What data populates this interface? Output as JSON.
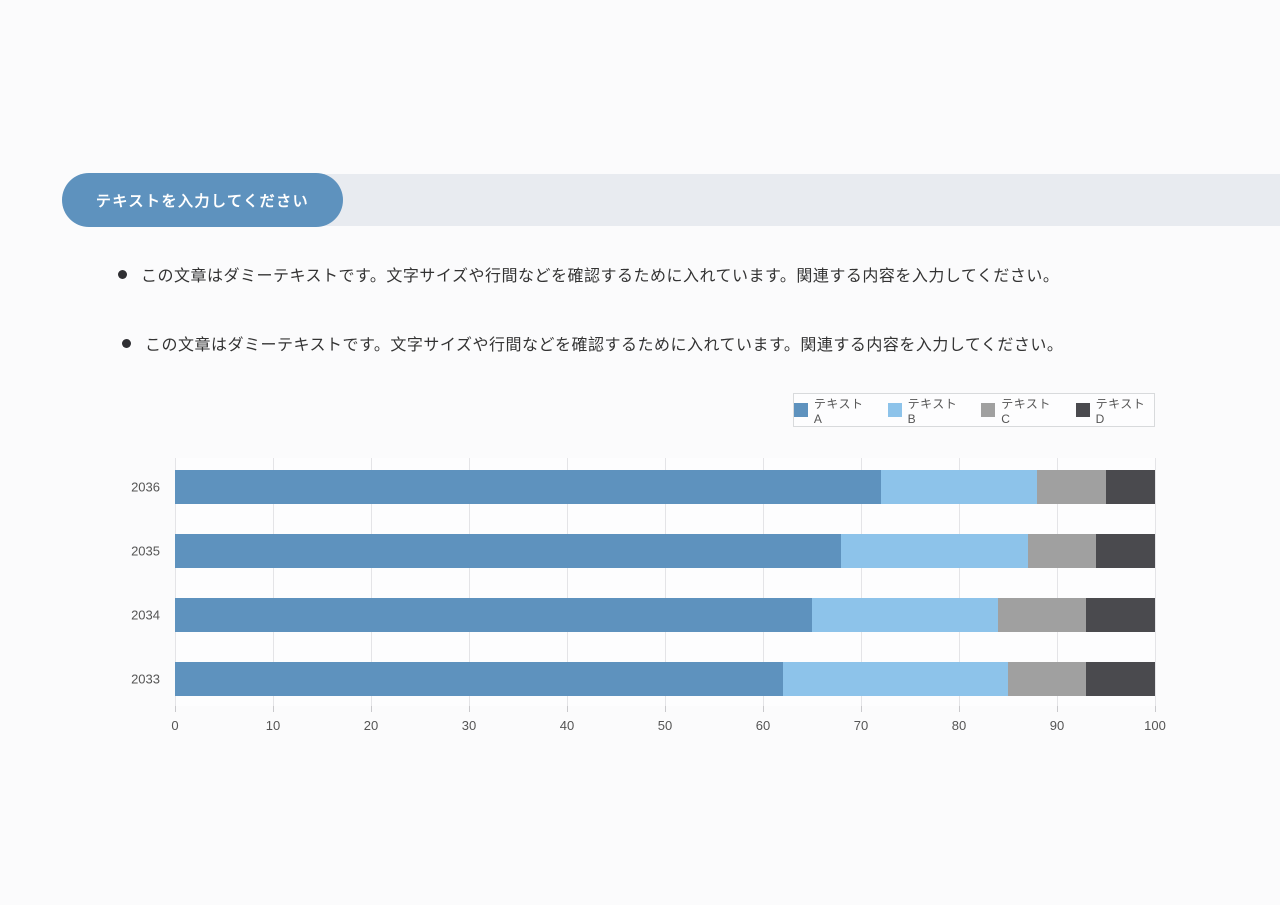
{
  "page": {
    "background": "#fbfbfc"
  },
  "title_bar": {
    "label": "テキストを入力してください",
    "pill_color": "#5e92be",
    "band_color": "#e8ebf0",
    "text_color": "#ffffff"
  },
  "bullets": [
    {
      "text": "この文章はダミーテキストです。文字サイズや行間などを確認するために入れています。関連する内容を入力してください。"
    },
    {
      "text": "この文章はダミーテキストです。文字サイズや行間などを確認するために入れています。関連する内容を入力してください。"
    }
  ],
  "chart_data": {
    "type": "bar",
    "orientation": "horizontal-stacked",
    "title": "",
    "xlabel": "",
    "ylabel": "",
    "xlim": [
      0,
      100
    ],
    "x_ticks": [
      0,
      10,
      20,
      30,
      40,
      50,
      60,
      70,
      80,
      90,
      100
    ],
    "grid": true,
    "legend_position": "top-right",
    "categories": [
      "2036",
      "2035",
      "2034",
      "2033"
    ],
    "series": [
      {
        "name": "テキストA",
        "color": "#5e92be",
        "values": [
          72,
          68,
          65,
          62
        ]
      },
      {
        "name": "テキストB",
        "color": "#8dc3ea",
        "values": [
          16,
          19,
          19,
          23
        ]
      },
      {
        "name": "テキストC",
        "color": "#a0a0a0",
        "values": [
          7,
          7,
          9,
          8
        ]
      },
      {
        "name": "テキストD",
        "color": "#4a4a4e",
        "values": [
          5,
          6,
          7,
          7
        ]
      }
    ]
  }
}
